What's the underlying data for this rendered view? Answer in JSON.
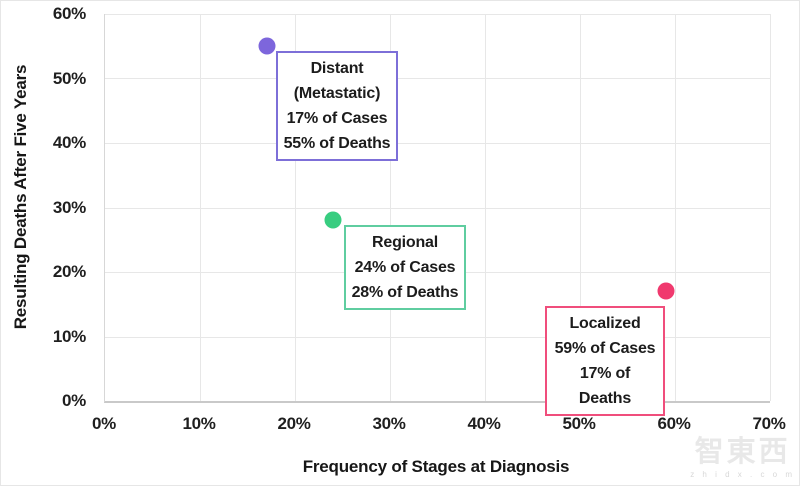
{
  "chart_data": {
    "type": "scatter",
    "xlabel": "Frequency of Stages at Diagnosis",
    "ylabel": "Resulting Deaths After Five Years",
    "xlim": [
      0,
      70
    ],
    "ylim": [
      0,
      60
    ],
    "x_ticks": [
      "0%",
      "10%",
      "20%",
      "30%",
      "40%",
      "50%",
      "60%",
      "70%"
    ],
    "y_ticks": [
      "0%",
      "10%",
      "20%",
      "30%",
      "40%",
      "50%",
      "60%"
    ],
    "grid": true,
    "legend": false,
    "points": [
      {
        "name": "Distant (Metastatic)",
        "x": 17,
        "y": 55,
        "color": "#7d66dc",
        "box_border": "#7d6fd8",
        "label_lines": [
          "Distant",
          "(Metastatic)",
          "17% of Cases",
          "55% of Deaths"
        ]
      },
      {
        "name": "Regional",
        "x": 24,
        "y": 28,
        "color": "#38cd80",
        "box_border": "#5fcda0",
        "label_lines": [
          "Regional",
          "24% of Cases",
          "28% of Deaths"
        ]
      },
      {
        "name": "Localized",
        "x": 59,
        "y": 17,
        "color": "#f0396e",
        "box_border": "#f04e7c",
        "label_lines": [
          "Localized",
          "59% of Cases",
          "17% of Deaths"
        ]
      }
    ]
  },
  "watermark": {
    "text": "智東西",
    "subtext": "z h i d x . c o m"
  }
}
